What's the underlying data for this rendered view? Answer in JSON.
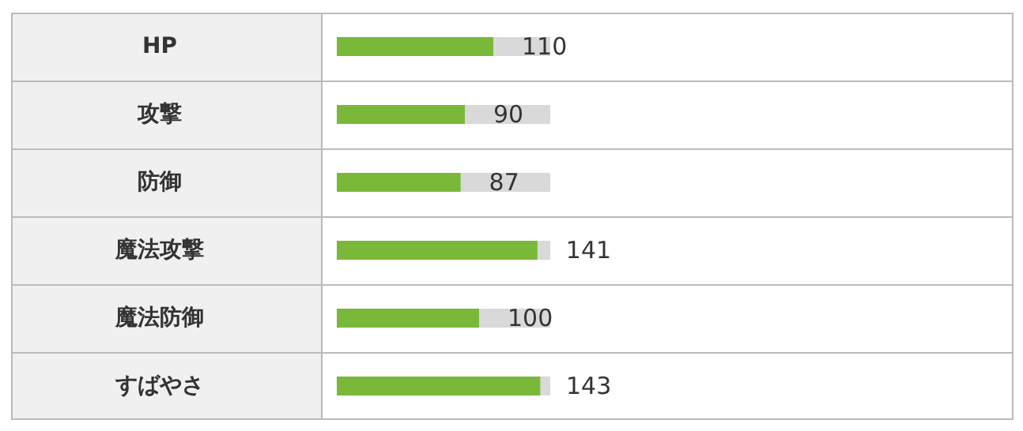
{
  "chart_data": {
    "type": "bar",
    "orientation": "horizontal",
    "categories": [
      "HP",
      "攻撃",
      "防御",
      "魔法攻撃",
      "魔法防御",
      "すばやさ"
    ],
    "values": [
      110,
      90,
      87,
      141,
      100,
      143
    ],
    "color": "#7ab83a",
    "data_labels": true,
    "tick_labels": "y"
  }
}
